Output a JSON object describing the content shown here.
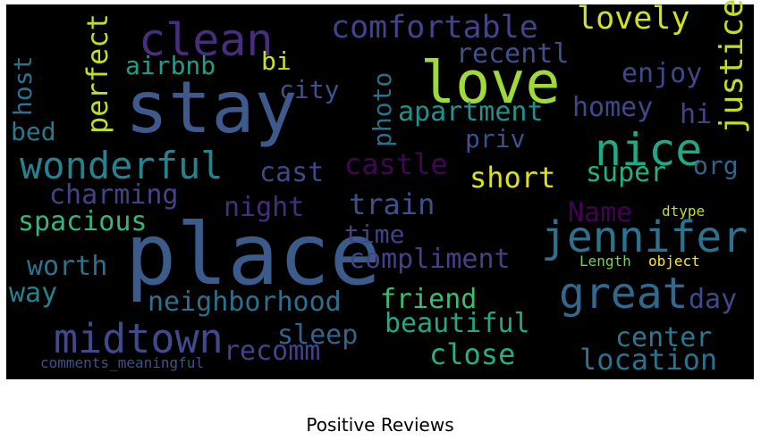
{
  "title": "Positive Reviews",
  "words": [
    "stay",
    "place",
    "love",
    "clean",
    "nice",
    "jennifer",
    "great",
    "midtown",
    "wonderful",
    "comfortable",
    "lovely",
    "recentl",
    "airbnb",
    "bi",
    "enjoy",
    "city",
    "apartment",
    "homey",
    "hi",
    "bed",
    "priv",
    "castle",
    "cast",
    "short",
    "super",
    "org",
    "charming",
    "night",
    "train",
    "Name",
    "dtype",
    "spacious",
    "time",
    "Length",
    "object",
    "compliment",
    "worth",
    "way",
    "neighborhood",
    "friend",
    "day",
    "beautiful",
    "sleep",
    "center",
    "recomm",
    "close",
    "location",
    "comments_meaningful",
    "justice",
    "host",
    "perfect",
    "photo"
  ]
}
